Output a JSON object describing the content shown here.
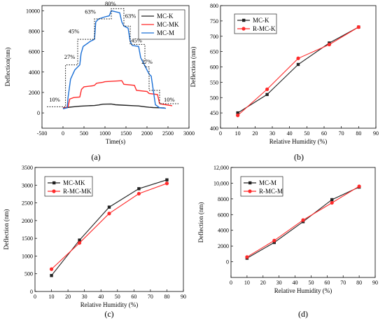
{
  "chart_data": [
    {
      "type": "line",
      "caption": "(a)",
      "xlabel": "Time(s)",
      "ylabel": "Deflection(nm)",
      "xlim": [
        -500,
        3000
      ],
      "ylim": [
        -1500,
        10500
      ],
      "xticks": [
        -500,
        0,
        500,
        1000,
        1500,
        2000,
        2500,
        3000
      ],
      "yticks": [
        0,
        2000,
        4000,
        6000,
        8000,
        10000
      ],
      "ytick_labels": [
        "0",
        "2000",
        "4000",
        "6000",
        "8000",
        "10000"
      ],
      "legend_position": "top-right",
      "series": [
        {
          "name": "MC-K",
          "color": "#222222",
          "x": [
            0,
            100,
            150,
            250,
            400,
            600,
            750,
            850,
            950,
            1150,
            1250,
            1400,
            1700,
            1800,
            1950,
            2050,
            2150,
            2300,
            2420
          ],
          "y": [
            500,
            520,
            560,
            600,
            650,
            700,
            720,
            780,
            850,
            870,
            800,
            760,
            700,
            680,
            600,
            550,
            520,
            500,
            480
          ]
        },
        {
          "name": "MC-MK",
          "color": "#ff2a2a",
          "x": [
            0,
            120,
            160,
            250,
            400,
            440,
            500,
            700,
            750,
            800,
            950,
            1000,
            1400,
            1450,
            1700,
            1750,
            2000,
            2050,
            2250,
            2300,
            2450,
            2600
          ],
          "y": [
            450,
            600,
            1350,
            1500,
            1550,
            2300,
            2550,
            2650,
            2700,
            2900,
            3000,
            3050,
            3150,
            2800,
            2700,
            2200,
            2100,
            1900,
            1800,
            900,
            800,
            700
          ]
        },
        {
          "name": "MC-M",
          "color": "#1a6fd6",
          "x": [
            0,
            100,
            120,
            180,
            280,
            400,
            430,
            480,
            650,
            750,
            780,
            850,
            1000,
            1100,
            1150,
            1350,
            1400,
            1450,
            1550,
            1600,
            1650,
            1800,
            1850,
            2050,
            2100,
            2200,
            2300,
            2450
          ],
          "y": [
            400,
            500,
            1500,
            3300,
            4200,
            4700,
            5800,
            6500,
            7000,
            7200,
            8900,
            9200,
            9400,
            9500,
            10000,
            9800,
            8900,
            8500,
            8300,
            7000,
            6600,
            6500,
            5400,
            3800,
            3600,
            800,
            500,
            450
          ]
        },
        {
          "name": "",
          "color": "#000000",
          "dash": "dotted",
          "x": [
            -380,
            60,
            60,
            350,
            350,
            750,
            750,
            1150,
            1150,
            1450,
            1450,
            1600,
            1600,
            1950,
            1950,
            2050,
            2050,
            2300,
            2300,
            2750
          ],
          "y": [
            600,
            600,
            4700,
            4700,
            7200,
            7200,
            9200,
            9200,
            10200,
            10200,
            8500,
            8500,
            6700,
            6700,
            4500,
            4500,
            2200,
            2200,
            900,
            900
          ]
        }
      ],
      "annotations": [
        "10%",
        "27%",
        "45%",
        "63%",
        "80%",
        "63%",
        "45%",
        "27%",
        "10%"
      ]
    },
    {
      "type": "line",
      "caption": "(b)",
      "xlabel": "Relative Humidity (%)",
      "ylabel": "Deflection (nm)",
      "xlim": [
        0,
        90
      ],
      "ylim": [
        400,
        800
      ],
      "xticks": [
        0,
        10,
        20,
        30,
        40,
        50,
        60,
        70,
        80,
        90
      ],
      "yticks": [
        400,
        450,
        500,
        550,
        600,
        650,
        700,
        750,
        800
      ],
      "ytick_labels": [
        "400",
        "450",
        "500",
        "550",
        "600",
        "650",
        "700",
        "750",
        "800"
      ],
      "legend_position": "top-left",
      "series": [
        {
          "name": "MC-K",
          "color": "#222222",
          "marker": "square",
          "x": [
            10,
            27,
            45,
            63,
            80
          ],
          "y": [
            450,
            510,
            608,
            678,
            730
          ]
        },
        {
          "name": "R-MC-K",
          "color": "#ff2a2a",
          "marker": "circle",
          "x": [
            10,
            27,
            45,
            63,
            80
          ],
          "y": [
            442,
            527,
            628,
            673,
            730
          ]
        }
      ]
    },
    {
      "type": "line",
      "caption": "(c)",
      "xlabel": "Relative Humidity (%)",
      "ylabel": "Deflection (nm)",
      "xlim": [
        0,
        90
      ],
      "ylim": [
        0,
        3500
      ],
      "xticks": [
        0,
        10,
        20,
        30,
        40,
        50,
        60,
        70,
        80,
        90
      ],
      "yticks": [
        0,
        500,
        1000,
        1500,
        2000,
        2500,
        3000,
        3500
      ],
      "ytick_labels": [
        "0",
        "500",
        "1000",
        "1500",
        "2000",
        "2500",
        "3000",
        "3500"
      ],
      "legend_position": "top-left",
      "series": [
        {
          "name": "MC-MK",
          "color": "#222222",
          "marker": "square",
          "x": [
            10,
            27,
            45,
            63,
            80
          ],
          "y": [
            450,
            1450,
            2380,
            2900,
            3150
          ]
        },
        {
          "name": "R-MC-MK",
          "color": "#ff2a2a",
          "marker": "circle",
          "x": [
            10,
            27,
            45,
            63,
            80
          ],
          "y": [
            630,
            1370,
            2200,
            2760,
            3050
          ]
        }
      ]
    },
    {
      "type": "line",
      "caption": "(d)",
      "xlabel": "Relative Humidity (%)",
      "ylabel": "Deflection (nm)",
      "xlim": [
        0,
        90
      ],
      "ylim": [
        -2000,
        12000
      ],
      "xticks": [
        0,
        10,
        20,
        30,
        40,
        50,
        60,
        70,
        80,
        90
      ],
      "yticks": [
        0,
        2000,
        4000,
        6000,
        8000,
        10000,
        12000
      ],
      "ytick_labels": [
        "0",
        "2000",
        "4000",
        "6000",
        "8000",
        "10,000",
        "12,000"
      ],
      "legend_position": "top-left",
      "series": [
        {
          "name": "MC-M",
          "color": "#222222",
          "marker": "square",
          "x": [
            10,
            27,
            45,
            63,
            80
          ],
          "y": [
            450,
            2450,
            5100,
            7900,
            9500
          ]
        },
        {
          "name": "R-MC-M",
          "color": "#ff2a2a",
          "marker": "circle",
          "x": [
            10,
            27,
            45,
            63,
            80
          ],
          "y": [
            600,
            2700,
            5300,
            7500,
            9600
          ]
        }
      ]
    }
  ]
}
